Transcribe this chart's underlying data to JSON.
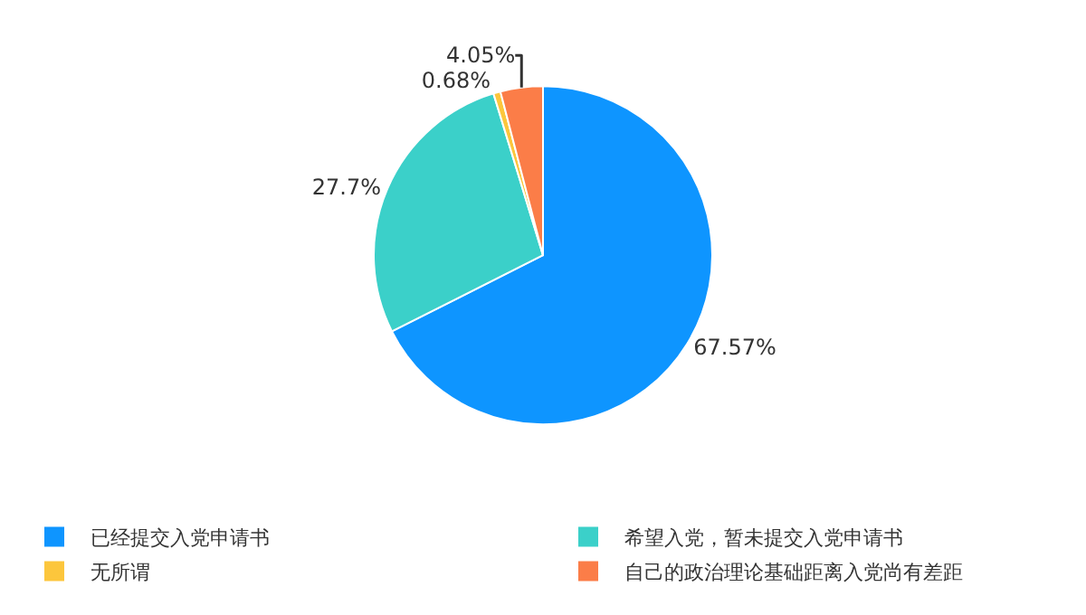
{
  "chart_data": {
    "type": "pie",
    "categories": [
      "已经提交入党申请书",
      "希望入党，暂未提交入党申请书",
      "无所谓",
      "自己的政治理论基础距离入党尚有差距"
    ],
    "values": [
      67.57,
      27.7,
      0.68,
      4.05
    ],
    "colors": [
      "#0e95ff",
      "#3bd0c9",
      "#fcc63c",
      "#fb7d48"
    ],
    "value_labels": [
      "67.57%",
      "27.7%",
      "0.68%",
      "4.05%"
    ],
    "legend": "bottom"
  }
}
